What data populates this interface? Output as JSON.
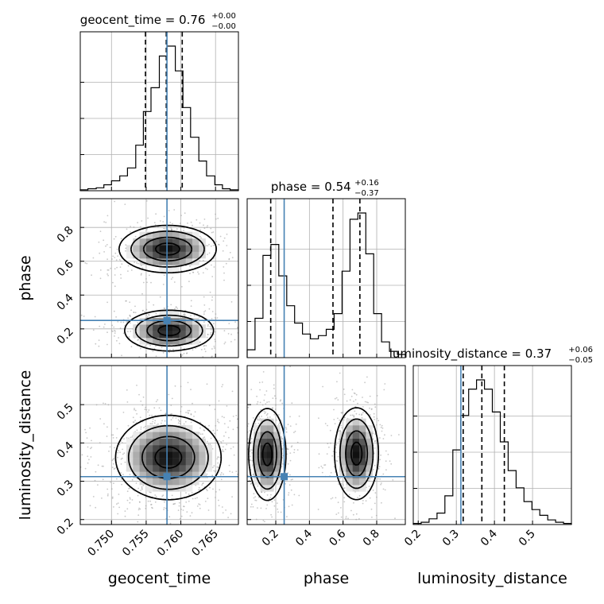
{
  "chart_data": {
    "type": "corner",
    "parameters": [
      "geocent_time",
      "phase",
      "luminosity_distance"
    ],
    "truths": {
      "geocent_time": 0.758,
      "phase": 0.25,
      "luminosity_distance": 0.312
    },
    "axes": {
      "geocent_time": {
        "range": [
          0.7455,
          0.7683
        ],
        "ticks": [
          0.75,
          0.755,
          0.76,
          0.765
        ],
        "tick_labels": [
          "0.750",
          "0.755",
          "0.760",
          "0.765"
        ]
      },
      "phase": {
        "range": [
          0.03,
          0.97
        ],
        "ticks": [
          0.2,
          0.4,
          0.6,
          0.8
        ],
        "tick_labels": [
          "0.2",
          "0.4",
          "0.6",
          "0.8"
        ]
      },
      "luminosity_distance": {
        "range": [
          0.187,
          0.602
        ],
        "ticks": [
          0.2,
          0.3,
          0.4,
          0.5
        ],
        "tick_labels": [
          "0.2",
          "0.3",
          "0.4",
          "0.5"
        ]
      }
    },
    "titles": [
      {
        "param": "geocent_time",
        "text": "geocent_time = 0.76",
        "plus": "+0.00",
        "minus": "−0.00"
      },
      {
        "param": "phase",
        "text": "phase = 0.54",
        "plus": "+0.16",
        "minus": "−0.37"
      },
      {
        "param": "luminosity_distance",
        "text": "luminosity_distance = 0.37",
        "plus": "+0.06",
        "minus": "−0.05"
      }
    ],
    "quantiles": {
      "geocent_time": [
        0.7549,
        0.7579,
        0.7602
      ],
      "phase": [
        0.17,
        0.54,
        0.7
      ],
      "luminosity_distance": [
        0.318,
        0.367,
        0.426
      ]
    },
    "histograms": {
      "geocent_time": {
        "edges": [
          0.7455,
          0.7466,
          0.7478,
          0.7489,
          0.75,
          0.7512,
          0.7523,
          0.7535,
          0.7546,
          0.7557,
          0.7569,
          0.758,
          0.7592,
          0.7603,
          0.7614,
          0.7626,
          0.7637,
          0.7649,
          0.766,
          0.7671,
          0.7683
        ],
        "counts": [
          1,
          2,
          3,
          6,
          10,
          15,
          23,
          46,
          80,
          104,
          136,
          146,
          121,
          84,
          54,
          30,
          15,
          6,
          2,
          1
        ]
      },
      "phase": {
        "edges": [
          0.03,
          0.077,
          0.124,
          0.171,
          0.218,
          0.265,
          0.312,
          0.359,
          0.406,
          0.453,
          0.5,
          0.547,
          0.594,
          0.641,
          0.688,
          0.735,
          0.782,
          0.829,
          0.876,
          0.923,
          0.97
        ],
        "counts": [
          5,
          25,
          65,
          72,
          52,
          33,
          22,
          15,
          12,
          14,
          18,
          28,
          55,
          88,
          92,
          66,
          28,
          10,
          4,
          2
        ]
      },
      "luminosity_distance": {
        "edges": [
          0.187,
          0.2078,
          0.2285,
          0.2493,
          0.27,
          0.2908,
          0.3115,
          0.3323,
          0.353,
          0.3738,
          0.3945,
          0.4153,
          0.436,
          0.4568,
          0.4775,
          0.4983,
          0.519,
          0.5398,
          0.5605,
          0.5813,
          0.602
        ],
        "counts": [
          1,
          2,
          5,
          10,
          25,
          65,
          95,
          118,
          126,
          118,
          98,
          72,
          47,
          32,
          20,
          13,
          8,
          4,
          2,
          1
        ]
      }
    },
    "joint_modes": [
      {
        "x": "geocent_time",
        "y": "phase",
        "centers": [
          [
            0.7581,
            0.672
          ],
          [
            0.7583,
            0.19
          ]
        ],
        "sigmas": [
          [
            0.0035,
            0.07
          ],
          [
            0.0032,
            0.06
          ]
        ]
      },
      {
        "x": "geocent_time",
        "y": "luminosity_distance",
        "centers": [
          [
            0.7582,
            0.362
          ]
        ],
        "sigmas": [
          [
            0.0038,
            0.055
          ]
        ]
      },
      {
        "x": "phase",
        "y": "luminosity_distance",
        "centers": [
          [
            0.15,
            0.37
          ],
          [
            0.68,
            0.372
          ]
        ],
        "sigmas": [
          [
            0.055,
            0.06
          ],
          [
            0.065,
            0.06
          ]
        ]
      }
    ],
    "contour_levels": [
      "0.5σ",
      "1σ",
      "1.5σ",
      "2σ"
    ]
  }
}
